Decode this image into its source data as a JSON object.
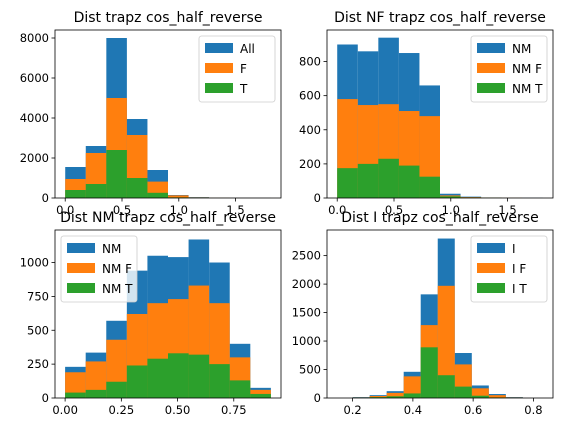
{
  "colors": {
    "blue": "#1f77b4",
    "orange": "#ff7f0e",
    "green": "#2ca02c"
  },
  "chart_data": [
    {
      "type": "bar",
      "title": "Dist trapz cos_half_reverse",
      "xlim": [
        -0.09,
        1.9
      ],
      "ylim": [
        0,
        8400
      ],
      "xticks": [
        0.0,
        0.5,
        1.0,
        1.5
      ],
      "xtick_labels": [
        "0.0",
        "0.5",
        "1.0",
        "1.5"
      ],
      "yticks": [
        0,
        2000,
        4000,
        6000,
        8000
      ],
      "ytick_labels": [
        "0",
        "2000",
        "4000",
        "6000",
        "8000"
      ],
      "legend_position": "upper right",
      "bin_edges": [
        0.0,
        0.181,
        0.362,
        0.543,
        0.724,
        0.905,
        1.086,
        1.267,
        1.448,
        1.629,
        1.81
      ],
      "series": [
        {
          "name": "All",
          "color_key": "blue",
          "values": [
            1550,
            2600,
            8000,
            3950,
            1400,
            150,
            40,
            10,
            5,
            3
          ]
        },
        {
          "name": "F",
          "color_key": "orange",
          "values": [
            950,
            2250,
            5000,
            3150,
            820,
            130,
            30,
            8,
            4,
            2
          ]
        },
        {
          "name": "T",
          "color_key": "green",
          "values": [
            400,
            700,
            2400,
            1000,
            260,
            30,
            10,
            2,
            1,
            1
          ]
        }
      ]
    },
    {
      "type": "bar",
      "title": "Dist NF trapz cos_half_reverse",
      "xlim": [
        -0.09,
        1.9
      ],
      "ylim": [
        0,
        985
      ],
      "xticks": [
        0.0,
        0.5,
        1.0,
        1.5
      ],
      "xtick_labels": [
        "0.0",
        "0.5",
        "1.0",
        "1.5"
      ],
      "yticks": [
        0,
        200,
        400,
        600,
        800
      ],
      "ytick_labels": [
        "0",
        "200",
        "400",
        "600",
        "800"
      ],
      "legend_position": "upper right",
      "bin_edges": [
        0.0,
        0.181,
        0.362,
        0.543,
        0.724,
        0.905,
        1.086,
        1.267,
        1.448,
        1.629,
        1.81
      ],
      "series": [
        {
          "name": "NM",
          "color_key": "blue",
          "values": [
            900,
            860,
            940,
            850,
            660,
            25,
            8,
            3,
            1,
            1
          ]
        },
        {
          "name": "NM F",
          "color_key": "orange",
          "values": [
            580,
            545,
            550,
            510,
            480,
            15,
            5,
            2,
            1,
            0
          ]
        },
        {
          "name": "NM T",
          "color_key": "green",
          "values": [
            175,
            200,
            230,
            190,
            125,
            10,
            3,
            1,
            0,
            0
          ]
        }
      ]
    },
    {
      "type": "bar",
      "title": "Dist NM trapz cos_half_reverse",
      "xlim": [
        -0.045,
        0.96
      ],
      "ylim": [
        0,
        1240
      ],
      "xticks": [
        0.0,
        0.25,
        0.5,
        0.75
      ],
      "xtick_labels": [
        "0.00",
        "0.25",
        "0.50",
        "0.75"
      ],
      "yticks": [
        0,
        250,
        500,
        750,
        1000
      ],
      "ytick_labels": [
        "0",
        "250",
        "500",
        "750",
        "1000"
      ],
      "legend_position": "upper left",
      "bin_edges": [
        0.0,
        0.0915,
        0.183,
        0.2745,
        0.366,
        0.4575,
        0.549,
        0.6405,
        0.732,
        0.8235,
        0.915
      ],
      "series": [
        {
          "name": "NM",
          "color_key": "blue",
          "values": [
            230,
            335,
            570,
            940,
            1050,
            1040,
            1170,
            1000,
            400,
            75
          ]
        },
        {
          "name": "NM F",
          "color_key": "orange",
          "values": [
            190,
            270,
            430,
            620,
            700,
            730,
            830,
            700,
            300,
            60
          ]
        },
        {
          "name": "NM T",
          "color_key": "green",
          "values": [
            40,
            60,
            120,
            240,
            290,
            330,
            320,
            250,
            130,
            30
          ]
        }
      ]
    },
    {
      "type": "bar",
      "title": "Dist I trapz cos_half_reverse",
      "xlim": [
        0.115,
        0.865
      ],
      "ylim": [
        0,
        2950
      ],
      "xticks": [
        0.2,
        0.4,
        0.6,
        0.8
      ],
      "xtick_labels": [
        "0.2",
        "0.4",
        "0.6",
        "0.8"
      ],
      "yticks": [
        0,
        500,
        1000,
        1500,
        2000,
        2500
      ],
      "ytick_labels": [
        "0",
        "500",
        "1000",
        "1500",
        "2000",
        "2500"
      ],
      "legend_position": "upper right",
      "bin_edges": [
        0.2,
        0.2565,
        0.313,
        0.3695,
        0.426,
        0.4825,
        0.539,
        0.5955,
        0.652,
        0.7085,
        0.765
      ],
      "series": [
        {
          "name": "I",
          "color_key": "blue",
          "values": [
            15,
            50,
            120,
            460,
            1820,
            2800,
            790,
            220,
            70,
            15
          ]
        },
        {
          "name": "I F",
          "color_key": "orange",
          "values": [
            10,
            35,
            90,
            380,
            1280,
            1970,
            590,
            170,
            50,
            10
          ]
        },
        {
          "name": "I T",
          "color_key": "green",
          "values": [
            5,
            15,
            30,
            80,
            890,
            400,
            200,
            40,
            10,
            3
          ]
        }
      ]
    }
  ]
}
